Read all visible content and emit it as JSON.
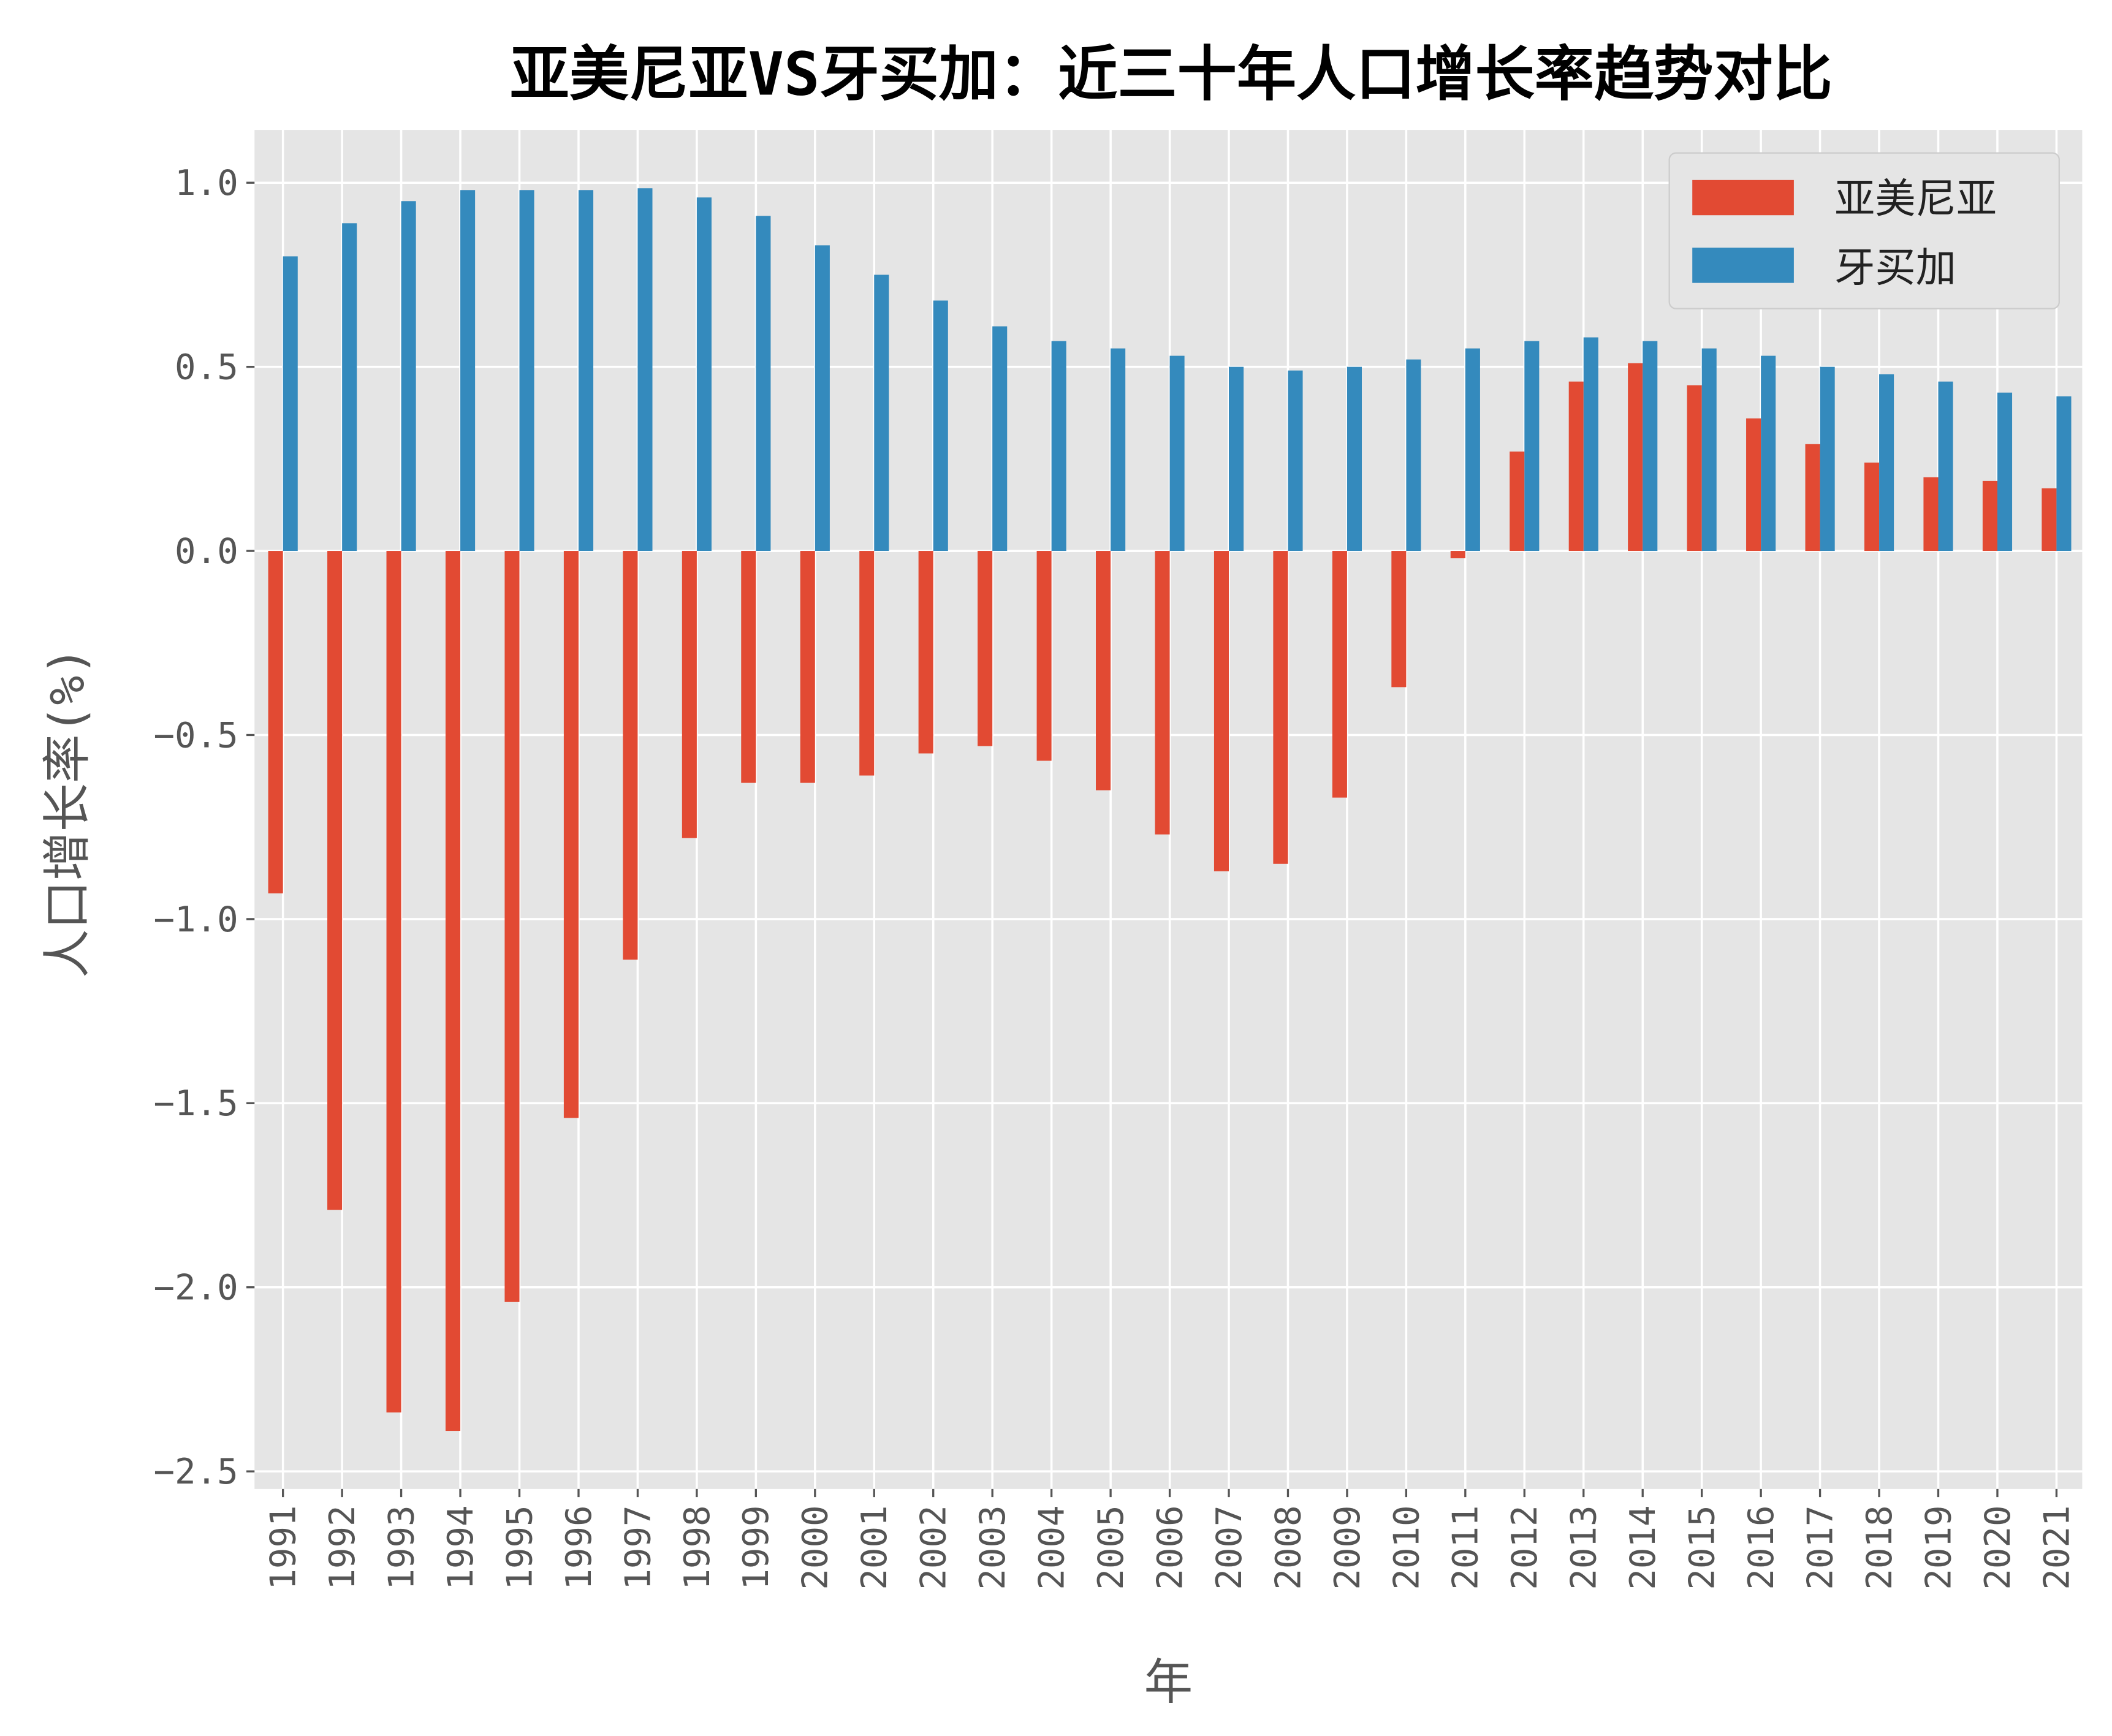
{
  "chart_data": {
    "type": "bar",
    "title": "亚美尼亚VS牙买加：近三十年人口增长率趋势对比",
    "xlabel": "年",
    "ylabel": "人口增长率(%)",
    "ylim": [
      -2.55,
      1.15
    ],
    "yticks": [
      "1.0",
      "0.5",
      "0.0",
      "-0.5",
      "-1.0",
      "-1.5",
      "-2.0",
      "-2.5"
    ],
    "ytick_values": [
      1.0,
      0.5,
      0.0,
      -0.5,
      -1.0,
      -1.5,
      -2.0,
      -2.5
    ],
    "grid": true,
    "legend_position": "top-right",
    "categories": [
      "1991",
      "1992",
      "1993",
      "1994",
      "1995",
      "1996",
      "1997",
      "1998",
      "1999",
      "2000",
      "2001",
      "2002",
      "2003",
      "2004",
      "2005",
      "2006",
      "2007",
      "2008",
      "2009",
      "2010",
      "2011",
      "2012",
      "2013",
      "2014",
      "2015",
      "2016",
      "2017",
      "2018",
      "2019",
      "2020",
      "2021"
    ],
    "series": [
      {
        "name": "亚美尼亚",
        "color": "#E24A33",
        "values": [
          -0.93,
          -1.79,
          -2.34,
          -2.39,
          -2.04,
          -1.54,
          -1.11,
          -0.78,
          -0.63,
          -0.63,
          -0.61,
          -0.55,
          -0.53,
          -0.57,
          -0.65,
          -0.77,
          -0.87,
          -0.85,
          -0.67,
          -0.37,
          -0.02,
          0.27,
          0.46,
          0.51,
          0.45,
          0.36,
          0.29,
          0.24,
          0.2,
          0.19,
          0.17
        ]
      },
      {
        "name": "牙买加",
        "color": "#348ABD",
        "values": [
          0.8,
          0.89,
          0.95,
          0.98,
          0.98,
          0.98,
          0.985,
          0.96,
          0.91,
          0.83,
          0.75,
          0.68,
          0.61,
          0.57,
          0.55,
          0.53,
          0.5,
          0.49,
          0.5,
          0.52,
          0.55,
          0.57,
          0.58,
          0.57,
          0.55,
          0.53,
          0.5,
          0.48,
          0.46,
          0.43,
          0.42
        ]
      }
    ]
  }
}
